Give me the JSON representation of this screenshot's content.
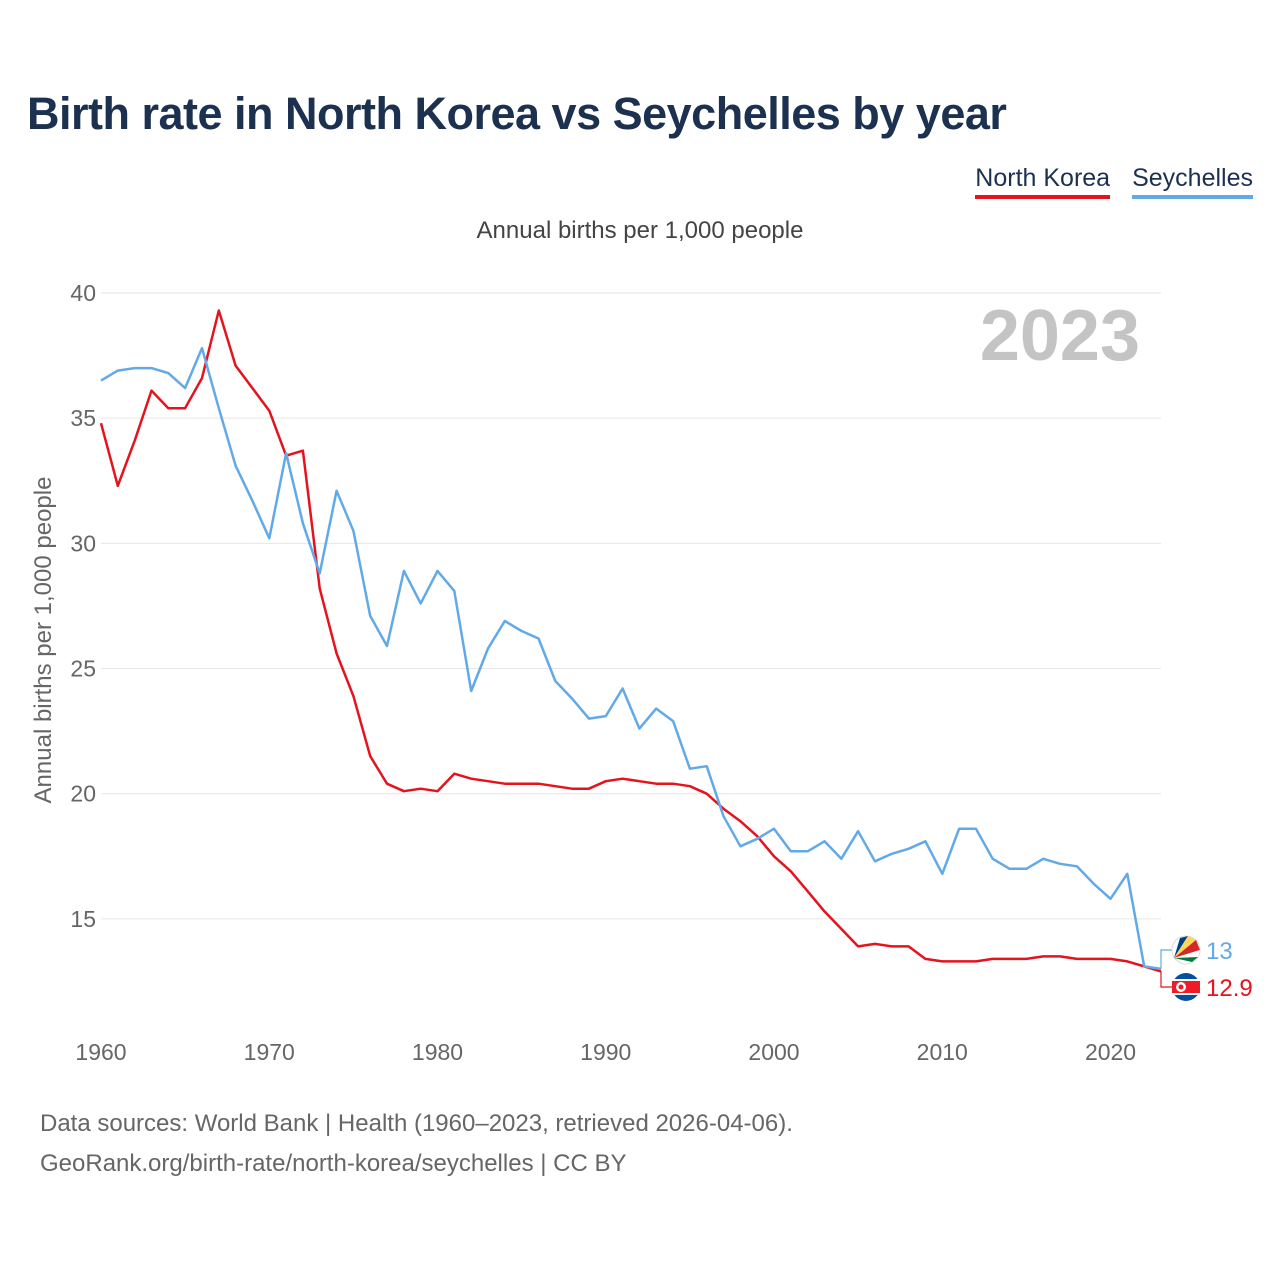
{
  "title": "Birth rate in North Korea vs Seychelles by year",
  "legend": {
    "north_korea": "North Korea",
    "seychelles": "Seychelles"
  },
  "subtitle": "Annual births per 1,000 people",
  "footer": {
    "line1": "Data sources: World Bank | Health (1960–2023, retrieved 2026-04-06).",
    "line2": "GeoRank.org/birth-rate/north-korea/seychelles | CC BY"
  },
  "colors": {
    "north_korea": "#e5131d",
    "seychelles": "#62a9e8",
    "grid": "#e6e6e6",
    "title": "#1c3050"
  },
  "chart_data": {
    "type": "line",
    "title": "Birth rate in North Korea vs Seychelles by year",
    "ylabel": "Annual births per 1,000 people",
    "xlabel": "",
    "year_label": "2023",
    "xlim": [
      1960,
      2023
    ],
    "ylim": [
      11,
      40
    ],
    "y_ticks": [
      15,
      20,
      25,
      30,
      35,
      40
    ],
    "x_ticks": [
      1960,
      1970,
      1980,
      1990,
      2000,
      2010,
      2020
    ],
    "grid": true,
    "x": [
      1960,
      1961,
      1962,
      1963,
      1964,
      1965,
      1966,
      1967,
      1968,
      1969,
      1970,
      1971,
      1972,
      1973,
      1974,
      1975,
      1976,
      1977,
      1978,
      1979,
      1980,
      1981,
      1982,
      1983,
      1984,
      1985,
      1986,
      1987,
      1988,
      1989,
      1990,
      1991,
      1992,
      1993,
      1994,
      1995,
      1996,
      1997,
      1998,
      1999,
      2000,
      2001,
      2002,
      2003,
      2004,
      2005,
      2006,
      2007,
      2008,
      2009,
      2010,
      2011,
      2012,
      2013,
      2014,
      2015,
      2016,
      2017,
      2018,
      2019,
      2020,
      2021,
      2022,
      2023
    ],
    "series": [
      {
        "name": "North Korea",
        "end_label": "12.9",
        "values": [
          34.8,
          32.3,
          34.1,
          36.1,
          35.4,
          35.4,
          36.6,
          39.3,
          37.1,
          36.2,
          35.3,
          33.5,
          33.7,
          28.2,
          25.6,
          23.9,
          21.5,
          20.4,
          20.1,
          20.2,
          20.1,
          20.8,
          20.6,
          20.5,
          20.4,
          20.4,
          20.4,
          20.3,
          20.2,
          20.2,
          20.5,
          20.6,
          20.5,
          20.4,
          20.4,
          20.3,
          20.0,
          19.4,
          18.9,
          18.3,
          17.5,
          16.9,
          16.1,
          15.3,
          14.6,
          13.9,
          14.0,
          13.9,
          13.9,
          13.4,
          13.3,
          13.3,
          13.3,
          13.4,
          13.4,
          13.4,
          13.5,
          13.5,
          13.4,
          13.4,
          13.4,
          13.3,
          13.1,
          12.9
        ]
      },
      {
        "name": "Seychelles",
        "end_label": "13",
        "values": [
          36.5,
          36.9,
          37.0,
          37.0,
          36.8,
          36.2,
          37.8,
          35.4,
          33.1,
          31.7,
          30.2,
          33.6,
          30.8,
          28.8,
          32.1,
          30.5,
          27.1,
          25.9,
          28.9,
          27.6,
          28.9,
          28.1,
          24.1,
          25.8,
          26.9,
          26.5,
          26.2,
          24.5,
          23.8,
          23.0,
          23.1,
          24.2,
          22.6,
          23.4,
          22.9,
          21.0,
          21.1,
          19.1,
          17.9,
          18.2,
          18.6,
          17.7,
          17.7,
          18.1,
          17.4,
          18.5,
          17.3,
          17.6,
          17.8,
          18.1,
          16.8,
          18.6,
          18.6,
          17.4,
          17.0,
          17.0,
          17.4,
          17.2,
          17.1,
          16.4,
          15.8,
          16.8,
          13.1,
          13.0
        ]
      }
    ]
  }
}
